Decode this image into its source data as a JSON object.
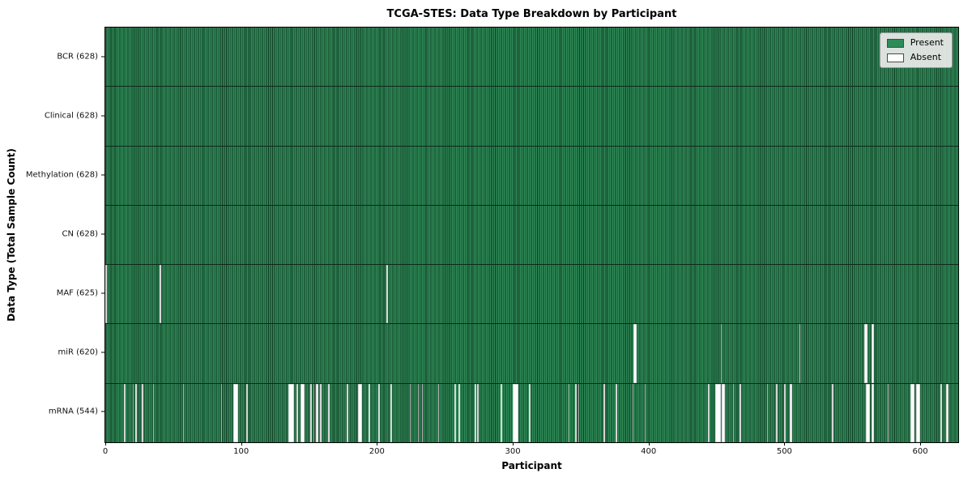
{
  "title": "TCGA-STES: Data Type Breakdown by Participant",
  "xlabel": "Participant",
  "ylabel": "Data Type (Total Sample Count)",
  "legend": {
    "present": {
      "label": "Present",
      "color": "#2e8b57"
    },
    "absent": {
      "label": "Absent",
      "color": "#ffffff"
    }
  },
  "colors": {
    "present": "#2e8b57",
    "absent": "#ffffff",
    "bar_edge": "#0c2a1a",
    "spine": "#000000",
    "legend_bg": "#eaecea"
  },
  "chart_data": {
    "type": "heatmap",
    "title": "TCGA-STES: Data Type Breakdown by Participant",
    "xlabel": "Participant",
    "ylabel": "Data Type (Total Sample Count)",
    "x_range": [
      0,
      628
    ],
    "total_participants": 628,
    "x_ticks": [
      0,
      100,
      200,
      300,
      400,
      500,
      600
    ],
    "legend_position": "upper right",
    "grid": false,
    "rows": [
      {
        "data_type": "BCR",
        "label": "BCR (628)",
        "present_count": 628,
        "absent_indices": []
      },
      {
        "data_type": "Clinical",
        "label": "Clinical (628)",
        "present_count": 628,
        "absent_indices": []
      },
      {
        "data_type": "Methylation",
        "label": "Methylation (628)",
        "present_count": 628,
        "absent_indices": []
      },
      {
        "data_type": "CN",
        "label": "CN (628)",
        "present_count": 628,
        "absent_indices": []
      },
      {
        "data_type": "MAF",
        "label": "MAF (625)",
        "present_count": 625,
        "absent_indices": [
          0,
          40,
          207
        ]
      },
      {
        "data_type": "miR",
        "label": "miR (620)",
        "present_count": 620,
        "absent_indices": [
          389,
          390,
          453,
          511,
          559,
          560,
          564,
          565
        ]
      },
      {
        "data_type": "mRNA",
        "label": "mRNA (544)",
        "present_count": 544,
        "absent_indices": [
          14,
          20,
          22,
          27,
          35,
          57,
          85,
          94,
          95,
          96,
          97,
          104,
          135,
          136,
          137,
          138,
          141,
          144,
          145,
          146,
          151,
          153,
          155,
          156,
          158,
          164,
          178,
          186,
          187,
          188,
          194,
          201,
          210,
          224,
          230,
          233,
          245,
          257,
          260,
          272,
          274,
          291,
          300,
          301,
          302,
          303,
          312,
          341,
          346,
          348,
          367,
          376,
          388,
          397,
          444,
          449,
          450,
          451,
          452,
          454,
          455,
          462,
          467,
          487,
          494,
          500,
          504,
          505,
          535,
          560,
          561,
          562,
          564,
          565,
          576,
          593,
          594,
          595,
          597,
          598,
          599,
          615,
          619,
          620
        ]
      }
    ]
  }
}
